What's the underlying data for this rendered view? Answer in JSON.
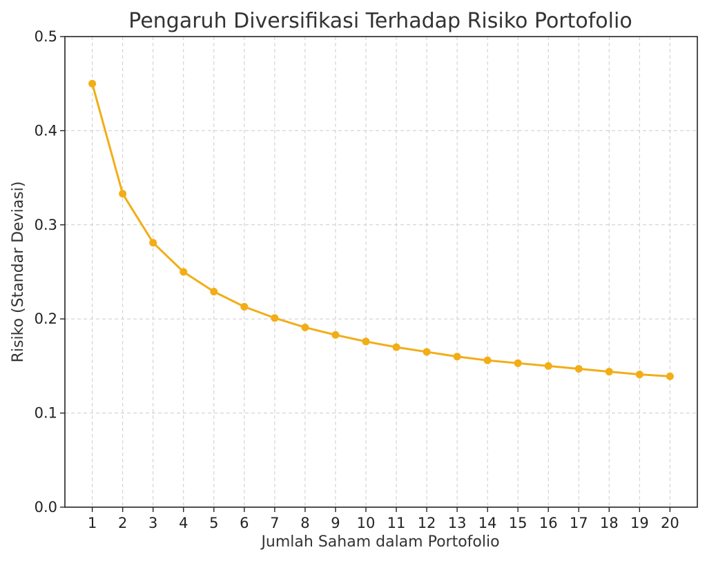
{
  "chart_data": {
    "type": "line",
    "title": "Pengaruh Diversifikasi Terhadap Risiko Portofolio",
    "xlabel": "Jumlah Saham dalam Portofolio",
    "ylabel": "Risiko (Standar Deviasi)",
    "x": [
      1,
      2,
      3,
      4,
      5,
      6,
      7,
      8,
      9,
      10,
      11,
      12,
      13,
      14,
      15,
      16,
      17,
      18,
      19,
      20
    ],
    "xlim": [
      0.1,
      20.9
    ],
    "ylim": [
      0.0,
      0.5
    ],
    "yticks": [
      0.0,
      0.1,
      0.2,
      0.3,
      0.4,
      0.5
    ],
    "ytick_labels": [
      "0.0",
      "0.1",
      "0.2",
      "0.3",
      "0.4",
      "0.5"
    ],
    "xtick_labels": [
      "1",
      "2",
      "3",
      "4",
      "5",
      "6",
      "7",
      "8",
      "9",
      "10",
      "11",
      "12",
      "13",
      "14",
      "15",
      "16",
      "17",
      "18",
      "19",
      "20"
    ],
    "grid": true,
    "legend": "none",
    "series": [
      {
        "color": "#f2ad17",
        "marker": "circle",
        "values": [
          0.45,
          0.333,
          0.281,
          0.25,
          0.229,
          0.213,
          0.201,
          0.191,
          0.183,
          0.176,
          0.17,
          0.165,
          0.16,
          0.156,
          0.153,
          0.15,
          0.147,
          0.144,
          0.141,
          0.139
        ]
      }
    ]
  }
}
